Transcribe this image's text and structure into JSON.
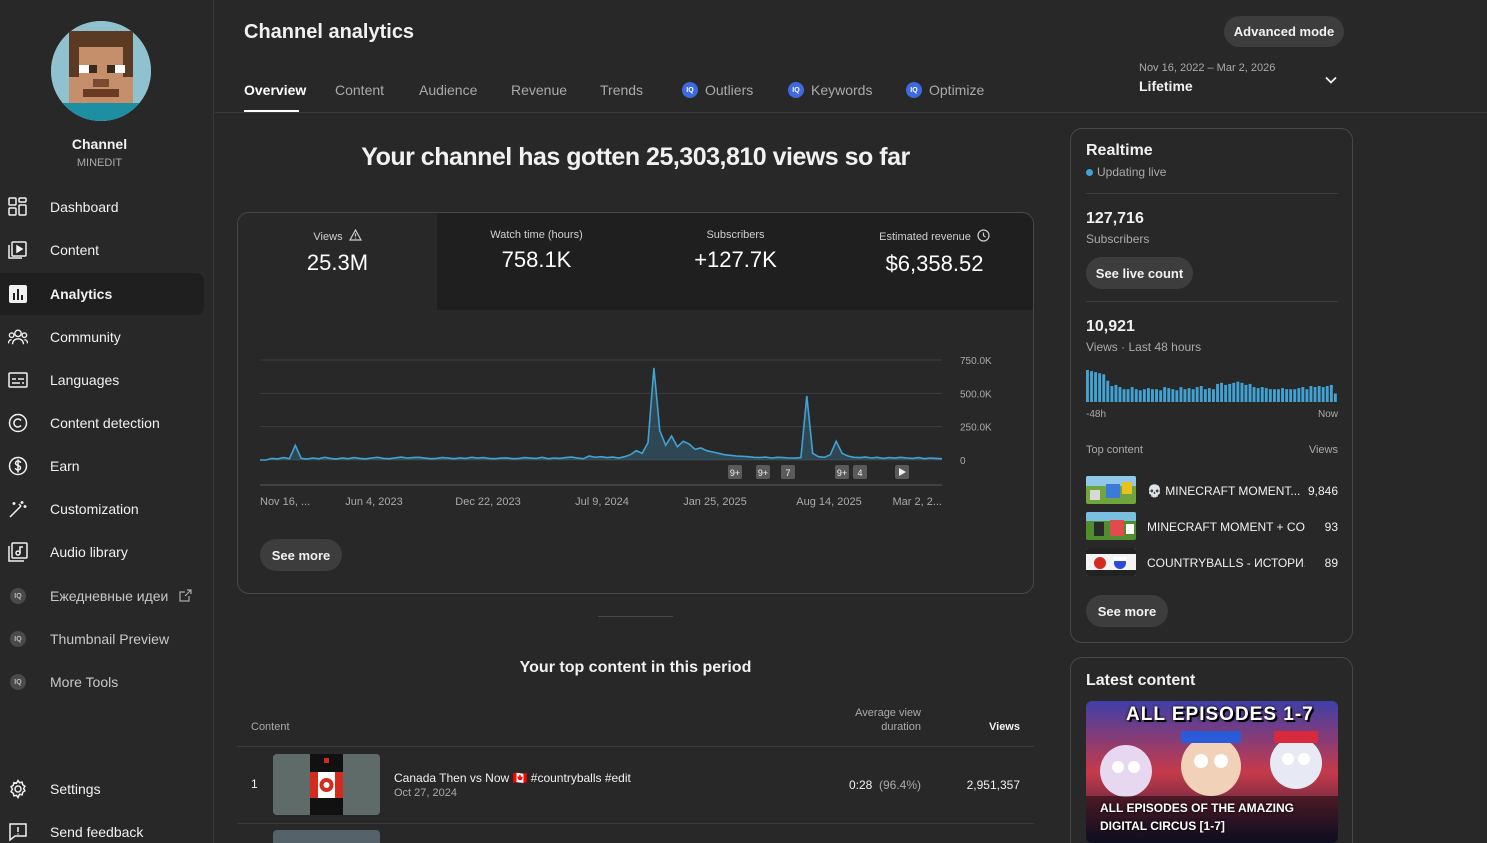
{
  "sidebar": {
    "channel_name": "Channel",
    "channel_handle": "MINEDIT",
    "items": [
      {
        "label": "Dashboard",
        "icon": "dashboard-icon"
      },
      {
        "label": "Content",
        "icon": "content-icon"
      },
      {
        "label": "Analytics",
        "icon": "analytics-icon",
        "active": true
      },
      {
        "label": "Community",
        "icon": "community-icon"
      },
      {
        "label": "Languages",
        "icon": "subtitles-icon"
      },
      {
        "label": "Content detection",
        "icon": "copyright-icon"
      },
      {
        "label": "Earn",
        "icon": "dollar-icon"
      },
      {
        "label": "Customization",
        "icon": "magic-wand-icon"
      },
      {
        "label": "Audio library",
        "icon": "audio-library-icon"
      }
    ],
    "ext_items": [
      {
        "label": "Ежедневные идеи",
        "icon": "vidiq-icon"
      },
      {
        "label": "Thumbnail Preview",
        "icon": "vidiq-icon"
      },
      {
        "label": "More Tools",
        "icon": "vidiq-icon"
      }
    ],
    "bottom_items": [
      {
        "label": "Settings",
        "icon": "gear-icon"
      },
      {
        "label": "Send feedback",
        "icon": "feedback-icon"
      }
    ]
  },
  "header": {
    "title": "Channel analytics",
    "advanced_mode": "Advanced mode",
    "date_range": "Nov 16, 2022 – Mar 2, 2026",
    "date_label": "Lifetime",
    "iq_badge": "IQ",
    "tabs": [
      "Overview",
      "Content",
      "Audience",
      "Revenue",
      "Trends",
      "Outliers",
      "Keywords",
      "Optimize"
    ]
  },
  "overview": {
    "headline": "Your channel has gotten 25,303,810 views so far",
    "metrics": [
      {
        "label": "Views",
        "value": "25.3M"
      },
      {
        "label": "Watch time (hours)",
        "value": "758.1K"
      },
      {
        "label": "Subscribers",
        "value": "+127.7K"
      },
      {
        "label": "Estimated revenue",
        "value": "$6,358.52"
      }
    ],
    "see_more": "See more"
  },
  "chart_data": {
    "type": "line",
    "series": [
      {
        "values": [
          0,
          0,
          12,
          8,
          18,
          10,
          110,
          12,
          8,
          15,
          10,
          20,
          12,
          8,
          14,
          10,
          18,
          12,
          9,
          15,
          20,
          12,
          10,
          16,
          22,
          15,
          18,
          20,
          14,
          10,
          12,
          18,
          14,
          10,
          16,
          12,
          20,
          14,
          18,
          12,
          10,
          14,
          16,
          10,
          12,
          18,
          14,
          12,
          20,
          10,
          15,
          12,
          18,
          22,
          14,
          10,
          30,
          20,
          25,
          18,
          22,
          15,
          25,
          40,
          70,
          50,
          130,
          690,
          220,
          110,
          180,
          100,
          140,
          120,
          80,
          90,
          70,
          60,
          50,
          40,
          35,
          30,
          28,
          25,
          20,
          18,
          22,
          15,
          20,
          18,
          15,
          14,
          18,
          480,
          50,
          25,
          20,
          40,
          140,
          50,
          30,
          20,
          18,
          22,
          15,
          20,
          12,
          18,
          14,
          20,
          15,
          12,
          18,
          10,
          15,
          12,
          10
        ]
      }
    ],
    "x_ticks": [
      "Nov 16, ...",
      "Jun 4, 2023",
      "Dec 22, 2023",
      "Jul 9, 2024",
      "Jan 25, 2025",
      "Aug 14, 2025",
      "Mar 2, 2..."
    ],
    "y_ticks": [
      "0",
      "250.0K",
      "500.0K",
      "750.0K"
    ],
    "ylim": [
      0,
      750000
    ],
    "markers": [
      "9+",
      "9+",
      "7",
      "9+",
      "4"
    ],
    "color": "#41a2d4"
  },
  "top_content": {
    "title": "Your top content in this period",
    "col_content": "Content",
    "col_avd": "Average view duration",
    "col_views": "Views",
    "rows": [
      {
        "rank": "1",
        "title": "Canada Then vs Now 🇨🇦 #countryballs #edit",
        "date": "Oct 27, 2024",
        "avd": "0:28",
        "avd_pct": "(96.4%)",
        "views": "2,951,357"
      }
    ]
  },
  "realtime": {
    "title": "Realtime",
    "status": "Updating live",
    "subs_value": "127,716",
    "subs_label": "Subscribers",
    "live_count_btn": "See live count",
    "views_value": "10,921",
    "views_label": "Views · Last 48 hours",
    "axis_left": "-48h",
    "axis_right": "Now",
    "bars": [
      30,
      29,
      28,
      27,
      26,
      20,
      15,
      16,
      14,
      12,
      12,
      14,
      12,
      11,
      12,
      13,
      12,
      12,
      11,
      14,
      13,
      12,
      11,
      14,
      12,
      13,
      12,
      14,
      15,
      12,
      13,
      12,
      17,
      18,
      16,
      17,
      18,
      19,
      18,
      16,
      17,
      14,
      13,
      14,
      13,
      12,
      12,
      12,
      13,
      12,
      12,
      12,
      13,
      14,
      12,
      15,
      14,
      15,
      14,
      15,
      16,
      8
    ],
    "top_content_label": "Top content",
    "views_col": "Views",
    "top_items": [
      {
        "title": "💀 MINECRAFT MOMENT...",
        "views": "9,846"
      },
      {
        "title": "MINECRAFT MOMENT + CO...",
        "views": "93"
      },
      {
        "title": "COUNTRYBALLS - ИСТОРИ...",
        "views": "89"
      }
    ],
    "see_more": "See more"
  },
  "latest": {
    "title": "Latest content",
    "thumb_banner": "ALL EPISODES 1-7",
    "caption": "ALL EPISODES OF THE AMAZING DIGITAL CIRCUS [1-7]"
  }
}
